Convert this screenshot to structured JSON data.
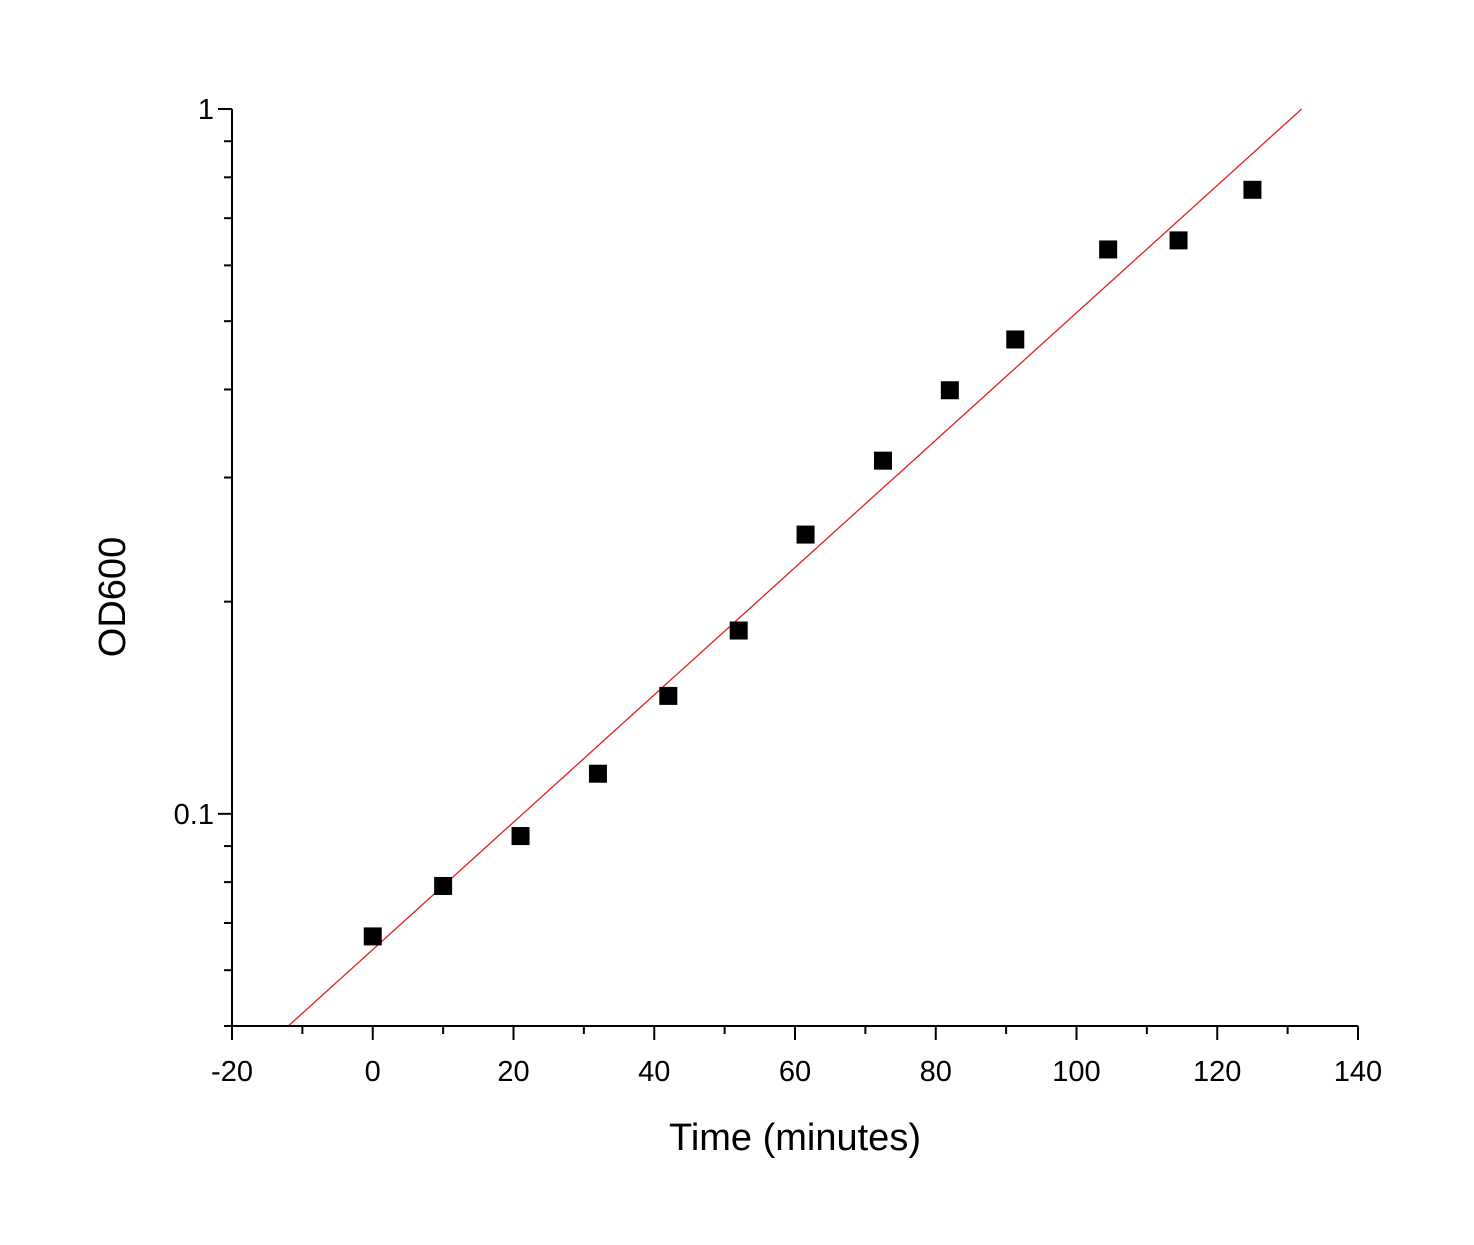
{
  "chart_data": {
    "type": "scatter",
    "xlabel": "Time (minutes)",
    "ylabel": "OD600",
    "xlim": [
      -20,
      140
    ],
    "ylim": [
      0.05,
      1
    ],
    "y_scale": "log",
    "grid": false,
    "x_ticks": [
      -20,
      0,
      20,
      40,
      60,
      80,
      100,
      120,
      140
    ],
    "x_tick_labels": [
      "-20",
      "0",
      "20",
      "40",
      "60",
      "80",
      "100",
      "120",
      "140"
    ],
    "y_ticks": [
      0.1,
      1
    ],
    "y_tick_labels": [
      "0.1",
      "1"
    ],
    "series": [
      {
        "marker": "square",
        "color": "#000000",
        "x": [
          0,
          10,
          21,
          32,
          42,
          52,
          61.5,
          72.5,
          82,
          91.3,
          104.5,
          114.5,
          125
        ],
        "y": [
          0.067,
          0.079,
          0.093,
          0.114,
          0.147,
          0.182,
          0.249,
          0.317,
          0.399,
          0.471,
          0.632,
          0.651,
          0.768
        ]
      }
    ],
    "fit_line": {
      "color": "#e02020",
      "x": [
        -12,
        132
      ],
      "y": [
        0.05,
        1.0
      ]
    }
  }
}
